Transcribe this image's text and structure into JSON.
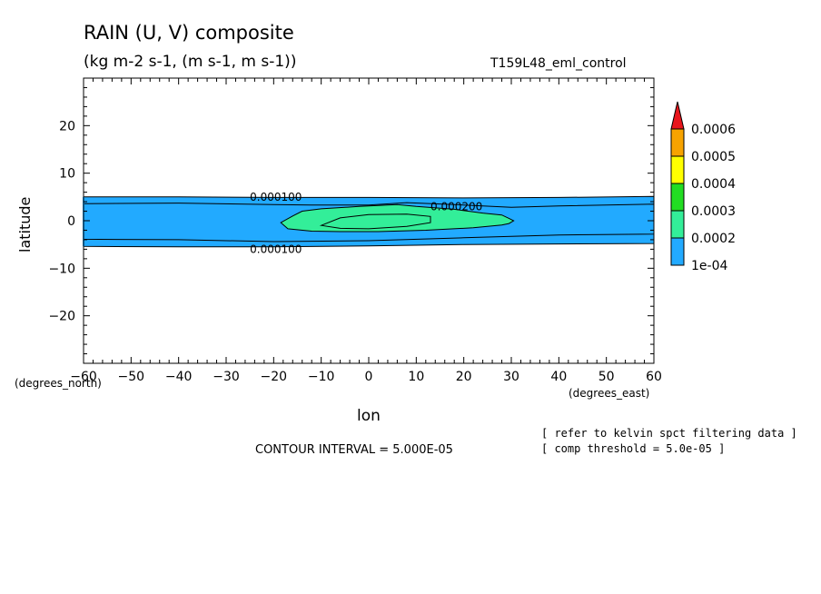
{
  "title": "RAIN (U, V) composite",
  "subtitle": "(kg m-2 s-1, (m s-1, m s-1))",
  "run_label": "T159L48_eml_control",
  "notes": [
    "[ refer to kelvin spct filtering data ]",
    "[ comp threshold = 5.0e-05 ]"
  ],
  "contour_interval": "CONTOUR INTERVAL = 5.000E-05",
  "chart_data": {
    "type": "contour",
    "xlabel": "lon",
    "xunit": "(degrees_east)",
    "ylabel": "latitude",
    "yunit": "(degrees_north)",
    "xlim": [
      -60,
      60
    ],
    "ylim": [
      -30,
      30
    ],
    "xticks": [
      -60,
      -50,
      -40,
      -30,
      -20,
      -10,
      0,
      10,
      20,
      30,
      40,
      50,
      60
    ],
    "yticks": [
      -20,
      -10,
      0,
      10,
      20
    ],
    "contour_labels": [
      {
        "text": "0.000100",
        "x": -25,
        "y": 5
      },
      {
        "text": "0.000100",
        "x": -25,
        "y": -6
      },
      {
        "text": "0.000200",
        "x": 13,
        "y": 3
      }
    ],
    "regions": [
      {
        "level": "1e-04",
        "points": [
          [
            -60,
            5
          ],
          [
            -40,
            5
          ],
          [
            -20,
            4.9
          ],
          [
            0,
            4.9
          ],
          [
            20,
            4.8
          ],
          [
            40,
            4.9
          ],
          [
            60,
            5.1
          ],
          [
            60,
            -4.8
          ],
          [
            40,
            -4.9
          ],
          [
            20,
            -5.0
          ],
          [
            0,
            -5.3
          ],
          [
            -20,
            -5.5
          ],
          [
            -40,
            -5.5
          ],
          [
            -60,
            -5.4
          ]
        ]
      },
      {
        "level": "0.0002",
        "points": [
          [
            -60,
            3.6
          ],
          [
            -40,
            3.7
          ],
          [
            -20,
            3.4
          ],
          [
            -12,
            3.3
          ],
          [
            0,
            3.3
          ],
          [
            8,
            3.8
          ],
          [
            18,
            3.4
          ],
          [
            30,
            2.8
          ],
          [
            40,
            3.1
          ],
          [
            60,
            3.5
          ],
          [
            60,
            -2.8
          ],
          [
            40,
            -3.0
          ],
          [
            30,
            -3.3
          ],
          [
            20,
            -3.6
          ],
          [
            0,
            -4.2
          ],
          [
            -20,
            -4.4
          ],
          [
            -40,
            -4.0
          ],
          [
            -60,
            -3.9
          ]
        ]
      },
      {
        "level": "0.0003",
        "points": [
          [
            -16,
            1.0
          ],
          [
            -14,
            2.0
          ],
          [
            -10,
            2.5
          ],
          [
            -2,
            3.0
          ],
          [
            6,
            3.4
          ],
          [
            10,
            3.0
          ],
          [
            18,
            2.4
          ],
          [
            24,
            1.6
          ],
          [
            28,
            1.2
          ],
          [
            29.5,
            0.5
          ],
          [
            30.5,
            0.0
          ],
          [
            29.5,
            -0.6
          ],
          [
            28,
            -0.9
          ],
          [
            22,
            -1.5
          ],
          [
            12,
            -2.0
          ],
          [
            2,
            -2.3
          ],
          [
            -6,
            -2.3
          ],
          [
            -12,
            -2.2
          ],
          [
            -17,
            -1.7
          ],
          [
            -18.5,
            -0.4
          ]
        ]
      },
      {
        "level": "0.0002-inner",
        "points": [
          [
            -10,
            -1.0
          ],
          [
            -6,
            0.6
          ],
          [
            0,
            1.3
          ],
          [
            8,
            1.4
          ],
          [
            13,
            0.9
          ],
          [
            13,
            -0.4
          ],
          [
            8,
            -1.2
          ],
          [
            0,
            -1.7
          ],
          [
            -6,
            -1.6
          ]
        ]
      }
    ],
    "colorbar": {
      "labels": [
        "0.0006",
        "0.0005",
        "0.0004",
        "0.0003",
        "0.0002",
        "1e-04"
      ],
      "colors": [
        "#e8151c",
        "#f7a300",
        "#ffff00",
        "#22dd22",
        "#33ee99",
        "#22aaff"
      ]
    },
    "colors": {
      "band_1e-04": "#22aaff",
      "band_0.0002": "#22aaff",
      "band_0.0003": "#33ee99"
    }
  }
}
